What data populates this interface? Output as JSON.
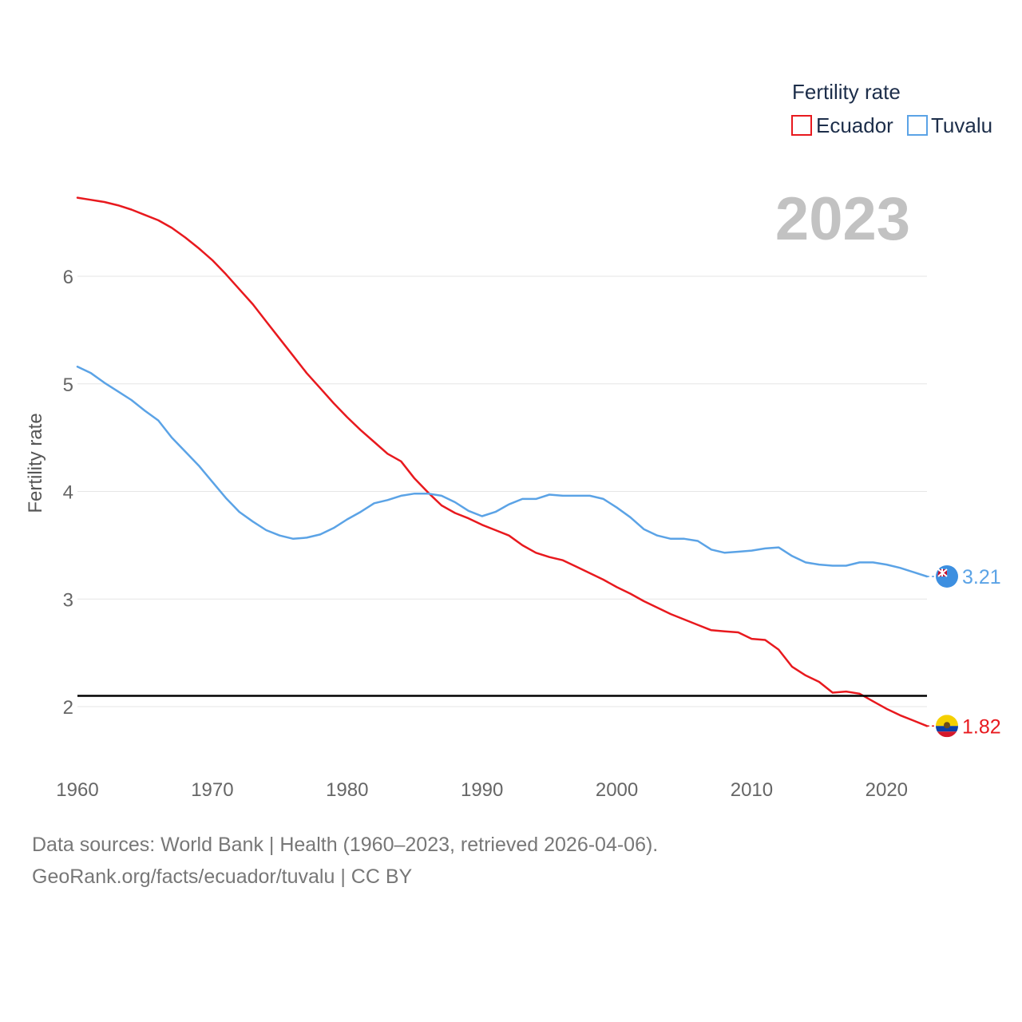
{
  "chart_data": {
    "type": "line",
    "current_year_label": "2023",
    "legend": {
      "title": "Fertility rate"
    },
    "ylabel": "Fertility rate",
    "xlim": [
      1960,
      2023
    ],
    "ylim": [
      1.5,
      7.0
    ],
    "x_ticks": [
      1960,
      1970,
      1980,
      1990,
      2000,
      2010,
      2020
    ],
    "y_ticks": [
      2,
      3,
      4,
      5,
      6
    ],
    "reference_line": {
      "y": 2.1,
      "color": "#000000"
    },
    "x": [
      1960,
      1961,
      1962,
      1963,
      1964,
      1965,
      1966,
      1967,
      1968,
      1969,
      1970,
      1971,
      1972,
      1973,
      1974,
      1975,
      1976,
      1977,
      1978,
      1979,
      1980,
      1981,
      1982,
      1983,
      1984,
      1985,
      1986,
      1987,
      1988,
      1989,
      1990,
      1991,
      1992,
      1993,
      1994,
      1995,
      1996,
      1997,
      1998,
      1999,
      2000,
      2001,
      2002,
      2003,
      2004,
      2005,
      2006,
      2007,
      2008,
      2009,
      2010,
      2011,
      2012,
      2013,
      2014,
      2015,
      2016,
      2017,
      2018,
      2019,
      2020,
      2021,
      2022,
      2023
    ],
    "series": [
      {
        "name": "Ecuador",
        "color": "#e8191e",
        "end_label": "1.82",
        "values": [
          6.73,
          6.71,
          6.69,
          6.66,
          6.62,
          6.57,
          6.52,
          6.45,
          6.36,
          6.26,
          6.15,
          6.02,
          5.88,
          5.74,
          5.58,
          5.42,
          5.26,
          5.1,
          4.96,
          4.82,
          4.69,
          4.57,
          4.46,
          4.35,
          4.28,
          4.12,
          3.99,
          3.87,
          3.8,
          3.75,
          3.69,
          3.64,
          3.59,
          3.5,
          3.43,
          3.39,
          3.36,
          3.3,
          3.24,
          3.18,
          3.11,
          3.05,
          2.98,
          2.92,
          2.86,
          2.81,
          2.76,
          2.71,
          2.7,
          2.69,
          2.63,
          2.62,
          2.53,
          2.37,
          2.29,
          2.23,
          2.13,
          2.14,
          2.12,
          2.05,
          1.98,
          1.92,
          1.87,
          1.82
        ]
      },
      {
        "name": "Tuvalu",
        "color": "#5ba3e6",
        "end_label": "3.21",
        "values": [
          5.16,
          5.1,
          5.01,
          4.93,
          4.85,
          4.75,
          4.66,
          4.5,
          4.37,
          4.24,
          4.09,
          3.94,
          3.81,
          3.72,
          3.64,
          3.59,
          3.56,
          3.57,
          3.6,
          3.66,
          3.74,
          3.81,
          3.89,
          3.92,
          3.96,
          3.98,
          3.98,
          3.96,
          3.9,
          3.82,
          3.77,
          3.81,
          3.88,
          3.93,
          3.93,
          3.97,
          3.96,
          3.96,
          3.96,
          3.93,
          3.85,
          3.76,
          3.65,
          3.59,
          3.56,
          3.56,
          3.54,
          3.46,
          3.43,
          3.44,
          3.45,
          3.47,
          3.48,
          3.4,
          3.34,
          3.32,
          3.31,
          3.31,
          3.34,
          3.34,
          3.32,
          3.29,
          3.25,
          3.21
        ]
      }
    ]
  },
  "footer": {
    "line1": "Data sources: World Bank | Health (1960–2023, retrieved 2026-04-06).",
    "line2": "GeoRank.org/facts/ecuador/tuvalu | CC BY"
  }
}
